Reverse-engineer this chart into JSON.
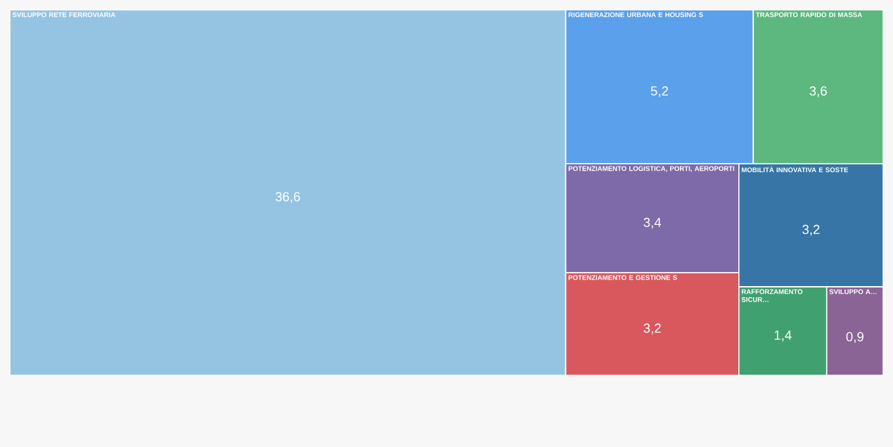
{
  "chart_data": {
    "type": "other",
    "categories": [
      "SVILUPPO RETE FERROVIARIA",
      "RIGENERAZIONE URBANA E HOUSING S",
      "TRASPORTO RAPIDO DI MASSA",
      "POTENZIAMENTO LOGISTICA, PORTI, AEROPORTI",
      "POTENZIAMENTO E GESTIONE S",
      "MOBILITÀ INNOVATIVA E SOSTE",
      "RAFFORZAMENTO SICUR…",
      "SVILUPPO A…"
    ],
    "values": [
      36.6,
      5.2,
      3.6,
      3.4,
      3.2,
      3.2,
      1.4,
      0.9
    ],
    "value_labels": [
      "36,6",
      "5,2",
      "3,6",
      "3,4",
      "3,2",
      "3,2",
      "1,4",
      "0,9"
    ],
    "colors": [
      "#94c4e2",
      "#5aa0ea",
      "#5cb87e",
      "#7e6aa8",
      "#d9585d",
      "#3675a6",
      "#40a070",
      "#8a6494"
    ]
  }
}
